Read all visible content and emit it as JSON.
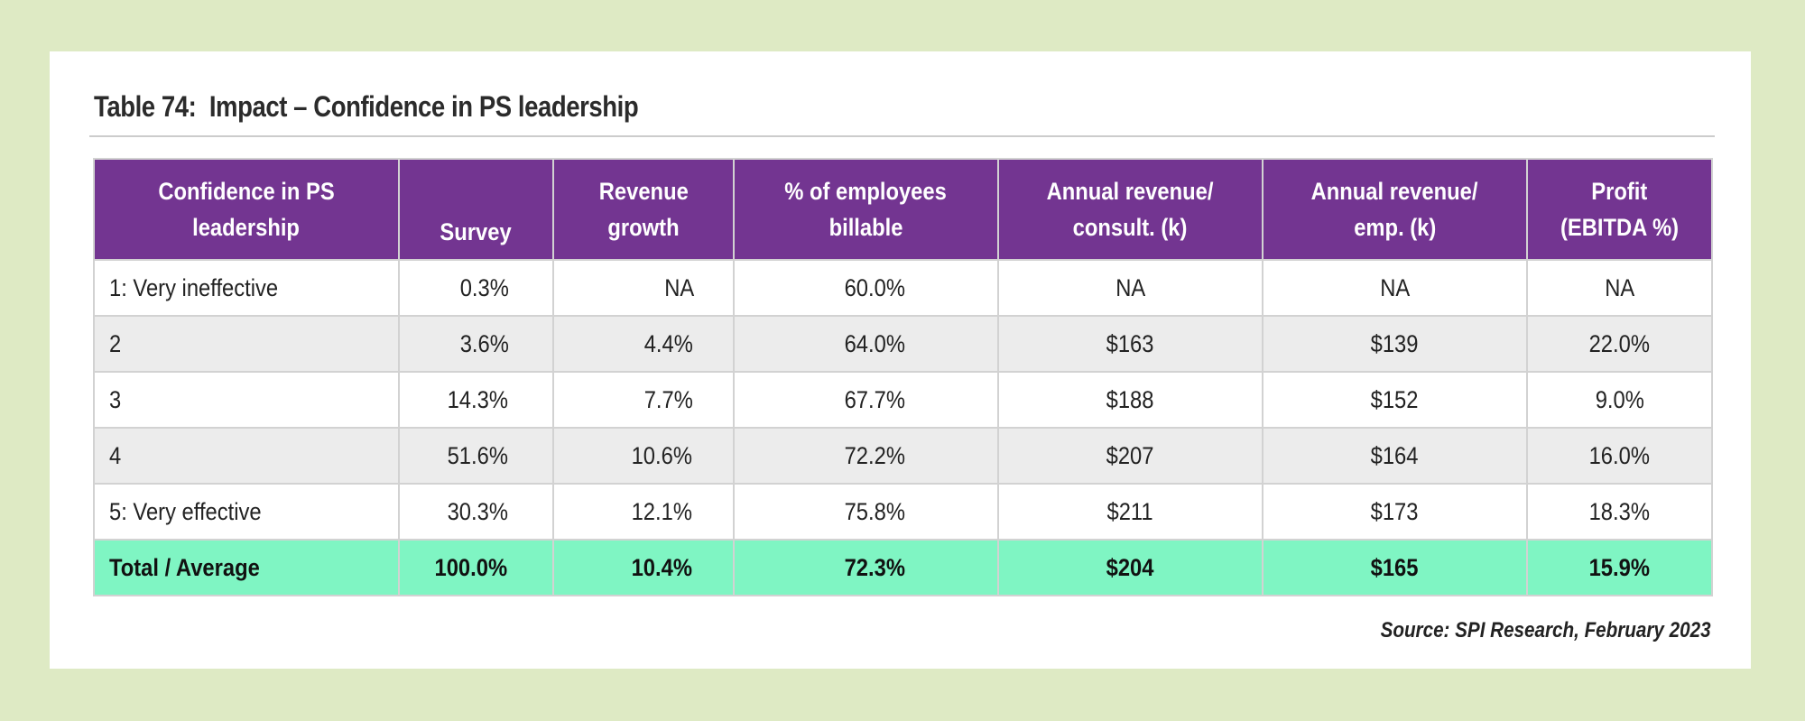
{
  "title": "Table 74:  Impact – Confidence in PS leadership",
  "source": "Source: SPI Research, February 2023",
  "colors": {
    "page_background": "#deeac4",
    "header_background": "#733591",
    "total_row_background": "#7ff5c3",
    "alt_row_background": "#ececec"
  },
  "table": {
    "headers": [
      {
        "line1": "Confidence in PS",
        "line2": "leadership"
      },
      {
        "line1": "",
        "line2": "Survey"
      },
      {
        "line1": "Revenue",
        "line2": "growth"
      },
      {
        "line1": "% of employees",
        "line2": "billable"
      },
      {
        "line1": "Annual revenue/",
        "line2": "consult. (k)"
      },
      {
        "line1": "Annual revenue/",
        "line2": "emp. (k)"
      },
      {
        "line1": "Profit",
        "line2": "(EBITDA %)"
      }
    ],
    "rows": [
      [
        "1: Very ineffective",
        "0.3%",
        "NA",
        "60.0%",
        "NA",
        "NA",
        "NA"
      ],
      [
        "2",
        "3.6%",
        "4.4%",
        "64.0%",
        "$163",
        "$139",
        "22.0%"
      ],
      [
        "3",
        "14.3%",
        "7.7%",
        "67.7%",
        "$188",
        "$152",
        "9.0%"
      ],
      [
        "4",
        "51.6%",
        "10.6%",
        "72.2%",
        "$207",
        "$164",
        "16.0%"
      ],
      [
        "5: Very effective",
        "30.3%",
        "12.1%",
        "75.8%",
        "$211",
        "$173",
        "18.3%"
      ]
    ],
    "total_row": [
      "Total / Average",
      "100.0%",
      "10.4%",
      "72.3%",
      "$204",
      "$165",
      "15.9%"
    ]
  }
}
